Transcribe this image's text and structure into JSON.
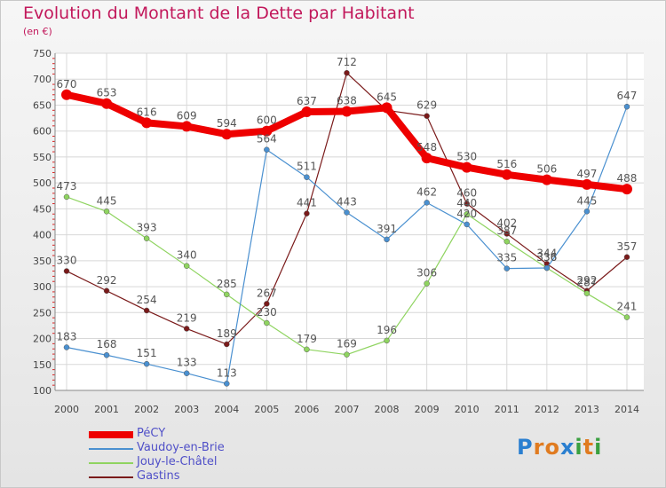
{
  "title": "Evolution du Montant de la Dette par Habitant",
  "subtitle": "(en €)",
  "logo": {
    "text": "Proxiti",
    "letters": [
      "P",
      "r",
      "o",
      "x",
      "i",
      "t",
      "i"
    ],
    "colors": [
      "#2a7fd0",
      "#e07b20",
      "#e07b20",
      "#2a7fd0",
      "#3aa040",
      "#e07b20",
      "#3aa040"
    ]
  },
  "chart_data": {
    "type": "line",
    "title": "Evolution du Montant de la Dette par Habitant",
    "ylabel": "(en €)",
    "xlabel": "",
    "x": [
      "2000",
      "2001",
      "2002",
      "2003",
      "2004",
      "2005",
      "2006",
      "2007",
      "2008",
      "2009",
      "2010",
      "2011",
      "2012",
      "2013",
      "2014"
    ],
    "ylim": [
      100,
      750
    ],
    "yticks": [
      "100",
      "150",
      "200",
      "250",
      "300",
      "350",
      "400",
      "450",
      "500",
      "550",
      "600",
      "650",
      "700",
      "750"
    ],
    "grid": true,
    "legend_position": "bottom-left",
    "series": [
      {
        "name": "PéCY",
        "color": "#ee0000",
        "values": [
          670,
          653,
          616,
          609,
          594,
          600,
          637,
          638,
          645,
          548,
          530,
          516,
          506,
          497,
          488
        ],
        "labels": [
          "670",
          "653",
          "616",
          "609",
          "594",
          "600",
          "637",
          "638",
          "645",
          "548",
          "530",
          "516",
          "506",
          "497",
          "488"
        ]
      },
      {
        "name": "Vaudoy-en-Brie",
        "color": "#4a90d0",
        "values": [
          183,
          168,
          151,
          133,
          113,
          564,
          511,
          443,
          391,
          462,
          420,
          335,
          336,
          445,
          647
        ],
        "labels": [
          "183",
          "168",
          "151",
          "133",
          "113",
          "564",
          "511",
          "443",
          "391",
          "462",
          "420",
          "335",
          "336",
          "445",
          "647"
        ]
      },
      {
        "name": "Jouy-le-Châtel",
        "color": "#8fd460",
        "values": [
          473,
          445,
          393,
          340,
          285,
          230,
          179,
          169,
          196,
          306,
          440,
          387,
          336,
          287,
          241
        ],
        "labels": [
          "473",
          "445",
          "393",
          "340",
          "285",
          "230",
          "179",
          "169",
          "196",
          "306",
          "440",
          "387",
          "336",
          "287",
          "241"
        ]
      },
      {
        "name": "Gastins",
        "color": "#7a1a1a",
        "values": [
          330,
          292,
          254,
          219,
          189,
          267,
          441,
          712,
          640,
          629,
          460,
          402,
          344,
          292,
          357
        ],
        "labels": [
          "330",
          "292",
          "254",
          "219",
          "189",
          "267",
          "441",
          "712",
          "",
          "629",
          "460",
          "402",
          "344",
          "292",
          "357"
        ]
      }
    ]
  }
}
